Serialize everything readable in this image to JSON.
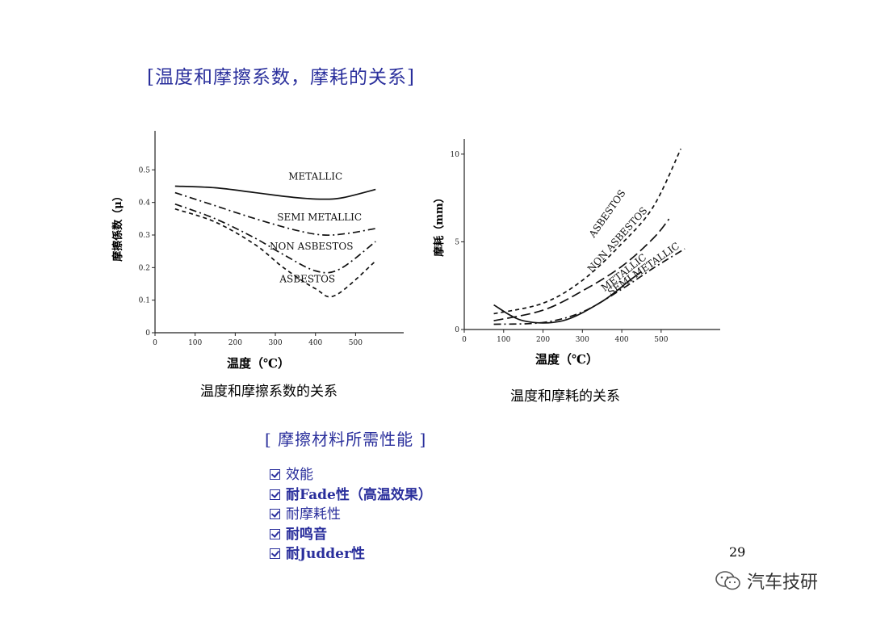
{
  "page": {
    "title": "[温度和摩擦系数，摩耗的关系]",
    "page_number": "29",
    "watermark": "汽车技研"
  },
  "chart_left": {
    "caption": "温度和摩擦系数的关系",
    "ylabel": "摩擦係数（μ）",
    "xlabel": "温度（℃）"
  },
  "chart_right": {
    "caption": "温度和摩耗的关系",
    "ylabel": "摩耗（mm）",
    "xlabel": "温度（℃）"
  },
  "requirements": {
    "title": "[ 摩擦材料所需性能 ]",
    "items": [
      {
        "label": "效能",
        "bold": false
      },
      {
        "label": "耐Fade性（高温效果）",
        "bold": true
      },
      {
        "label": "耐摩耗性",
        "bold": false
      },
      {
        "label": "耐鸣音",
        "bold": true
      },
      {
        "label": "耐Judder性",
        "bold": true
      }
    ]
  },
  "chart_data": [
    {
      "type": "line",
      "x_ticks": [
        "0",
        "100",
        "200",
        "300",
        "400",
        "500"
      ],
      "y_ticks": [
        "0",
        "0.1",
        "0.2",
        "0.3",
        "0.4",
        "0.5"
      ],
      "xlim": [
        0,
        620
      ],
      "ylim": [
        0,
        0.6
      ],
      "series": [
        {
          "name": "METALLIC",
          "style": "solid",
          "x": [
            50,
            150,
            250,
            350,
            420,
            470,
            550
          ],
          "y": [
            0.45,
            0.445,
            0.43,
            0.415,
            0.41,
            0.415,
            0.44
          ]
        },
        {
          "name": "SEMI METALLIC",
          "style": "dashdot",
          "x": [
            50,
            150,
            250,
            350,
            420,
            480,
            550
          ],
          "y": [
            0.43,
            0.39,
            0.35,
            0.315,
            0.3,
            0.305,
            0.32
          ]
        },
        {
          "name": "NON ASBESTOS",
          "style": "dashdot",
          "x": [
            50,
            150,
            250,
            320,
            400,
            460,
            550
          ],
          "y": [
            0.395,
            0.35,
            0.29,
            0.24,
            0.19,
            0.195,
            0.28
          ]
        },
        {
          "name": "ASBESTOS",
          "style": "dash",
          "x": [
            50,
            150,
            250,
            320,
            400,
            450,
            550
          ],
          "y": [
            0.38,
            0.34,
            0.27,
            0.2,
            0.135,
            0.115,
            0.22
          ]
        }
      ]
    },
    {
      "type": "line",
      "x_ticks": [
        "0",
        "100",
        "200",
        "300",
        "400",
        "500"
      ],
      "y_ticks": [
        "0",
        "5",
        "10"
      ],
      "xlim": [
        0,
        650
      ],
      "ylim": [
        0,
        10.5
      ],
      "series": [
        {
          "name": "ASBESTOS",
          "style": "dash",
          "x": [
            75,
            200,
            300,
            400,
            480,
            550
          ],
          "y": [
            0.9,
            1.5,
            2.8,
            4.9,
            7.0,
            10.3
          ]
        },
        {
          "name": "NON ASBESTOS",
          "style": "longdash",
          "x": [
            75,
            200,
            300,
            400,
            480,
            520
          ],
          "y": [
            0.5,
            1.1,
            2.2,
            3.6,
            5.2,
            6.3
          ]
        },
        {
          "name": "METALLIC",
          "style": "solid",
          "x": [
            75,
            150,
            250,
            350,
            420,
            450
          ],
          "y": [
            1.4,
            0.5,
            0.5,
            1.6,
            2.8,
            3.3
          ]
        },
        {
          "name": "SEMI METALLIC",
          "style": "dashdot",
          "x": [
            75,
            200,
            300,
            400,
            480,
            560
          ],
          "y": [
            0.3,
            0.4,
            1.0,
            2.3,
            3.5,
            4.6
          ]
        }
      ]
    }
  ]
}
